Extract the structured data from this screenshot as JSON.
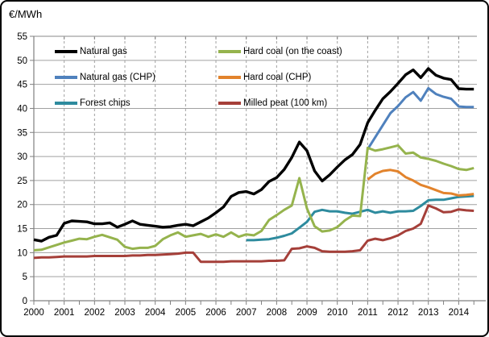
{
  "title": "€/MWh",
  "chart_data": {
    "type": "line",
    "title": "€/MWh",
    "xlabel": "",
    "ylabel": "€/MWh",
    "x_ticks": [
      2000,
      2001,
      2002,
      2003,
      2004,
      2005,
      2006,
      2007,
      2008,
      2009,
      2010,
      2011,
      2012,
      2013,
      2014
    ],
    "y_ticks": [
      0,
      5,
      10,
      15,
      20,
      25,
      30,
      35,
      40,
      45,
      50,
      55
    ],
    "xlim": [
      2000,
      2014.6
    ],
    "ylim": [
      0,
      55
    ],
    "x_minor_tick_interval": 0.5,
    "step_per_point": 0.25,
    "grid": {
      "horizontal": "solid",
      "vertical": "dashed"
    },
    "legend_position": "top-left, two columns, inside plot",
    "series": [
      {
        "name": "Natural gas",
        "color": "#000000",
        "width": 3.4,
        "start": 2000.0,
        "values": [
          12.7,
          12.4,
          13.2,
          13.6,
          16.1,
          16.6,
          16.5,
          16.4,
          16.0,
          16.0,
          16.2,
          15.3,
          15.9,
          16.6,
          15.9,
          15.7,
          15.5,
          15.3,
          15.4,
          15.7,
          15.9,
          15.6,
          16.4,
          17.2,
          18.3,
          19.5,
          21.7,
          22.5,
          22.7,
          22.2,
          23.1,
          24.8,
          25.6,
          27.3,
          29.8,
          33.0,
          31.2,
          27.0,
          24.9,
          26.2,
          27.8,
          29.3,
          30.4,
          32.5,
          37.0,
          39.6,
          42.0,
          43.5,
          45.2,
          47.0,
          48.0,
          46.4,
          48.3,
          46.9,
          46.3,
          46.0,
          44.1,
          44.0,
          44.0
        ]
      },
      {
        "name": "Natural gas (CHP)",
        "color": "#4F81BD",
        "width": 3,
        "start": 2011.0,
        "values": [
          31.5,
          34.0,
          36.5,
          39.0,
          40.5,
          42.3,
          43.4,
          41.6,
          44.2,
          43.0,
          42.4,
          42.0,
          40.4,
          40.3,
          40.3
        ]
      },
      {
        "name": "Forest chips",
        "color": "#2E8B9E",
        "width": 3,
        "start": 2007.0,
        "values": [
          12.6,
          12.6,
          12.7,
          12.8,
          13.1,
          13.5,
          14.0,
          15.2,
          16.4,
          18.5,
          18.9,
          18.6,
          18.6,
          18.3,
          18.1,
          18.5,
          18.9,
          18.3,
          18.6,
          18.3,
          18.6,
          18.6,
          18.7,
          19.7,
          20.9,
          21.0,
          21.0,
          21.3,
          21.6,
          21.7,
          21.8
        ]
      },
      {
        "name": "Hard coal (on the coast)",
        "color": "#95B34D",
        "width": 3,
        "start": 2000.0,
        "values": [
          10.5,
          10.6,
          11.1,
          11.6,
          12.1,
          12.5,
          12.9,
          12.8,
          13.3,
          13.7,
          13.2,
          12.7,
          11.2,
          10.8,
          11.0,
          11.0,
          11.4,
          12.8,
          13.6,
          14.2,
          13.3,
          13.6,
          13.9,
          13.3,
          13.8,
          13.3,
          14.2,
          13.3,
          13.8,
          13.6,
          14.5,
          16.8,
          17.8,
          18.9,
          19.8,
          25.5,
          19.2,
          15.5,
          14.4,
          14.6,
          15.3,
          16.7,
          17.7,
          17.6,
          31.8,
          31.2,
          31.5,
          31.9,
          32.3,
          30.6,
          30.8,
          29.8,
          29.5,
          29.1,
          28.5,
          28.0,
          27.4,
          27.2,
          27.6
        ]
      },
      {
        "name": "Hard coal (CHP)",
        "color": "#E2832C",
        "width": 3,
        "start": 2011.0,
        "values": [
          25.2,
          26.4,
          27.0,
          27.2,
          26.9,
          25.7,
          25.0,
          24.1,
          23.6,
          23.0,
          22.4,
          22.3,
          21.9,
          22.0,
          22.2
        ]
      },
      {
        "name": "Milled peat (100 km)",
        "color": "#A53F39",
        "width": 3,
        "start": 2000.0,
        "values": [
          8.9,
          9.0,
          9.0,
          9.1,
          9.2,
          9.2,
          9.2,
          9.2,
          9.3,
          9.3,
          9.3,
          9.3,
          9.3,
          9.4,
          9.4,
          9.5,
          9.5,
          9.6,
          9.7,
          9.8,
          10.0,
          10.0,
          8.1,
          8.1,
          8.1,
          8.1,
          8.2,
          8.2,
          8.2,
          8.2,
          8.2,
          8.3,
          8.3,
          8.4,
          10.8,
          10.9,
          11.3,
          11.0,
          10.3,
          10.2,
          10.2,
          10.2,
          10.3,
          10.5,
          12.5,
          12.9,
          12.6,
          13.0,
          13.6,
          14.5,
          15.0,
          16.0,
          19.8,
          19.2,
          18.4,
          18.5,
          19.0,
          18.8,
          18.7
        ]
      }
    ],
    "colors": {
      "grid": "#A0A0A0",
      "axis": "#808080",
      "text": "#000000",
      "background": "#FFFFFF"
    }
  }
}
